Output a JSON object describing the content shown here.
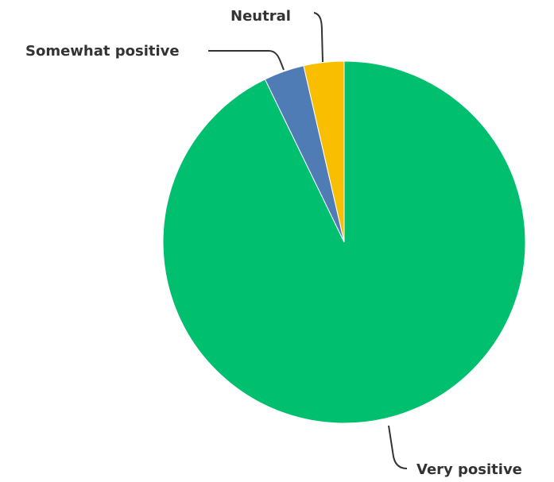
{
  "chart_data": {
    "type": "pie",
    "title": "",
    "slices": [
      {
        "label": "Neutral",
        "value": 3.6,
        "color": "#F9BE00"
      },
      {
        "label": "Somewhat positive",
        "value": 3.6,
        "color": "#507CB6"
      },
      {
        "label": "Very positive",
        "value": 92.8,
        "color": "#00BF6F"
      }
    ],
    "direction": "counterclockwise",
    "start": "12 o'clock",
    "legend": "none"
  }
}
